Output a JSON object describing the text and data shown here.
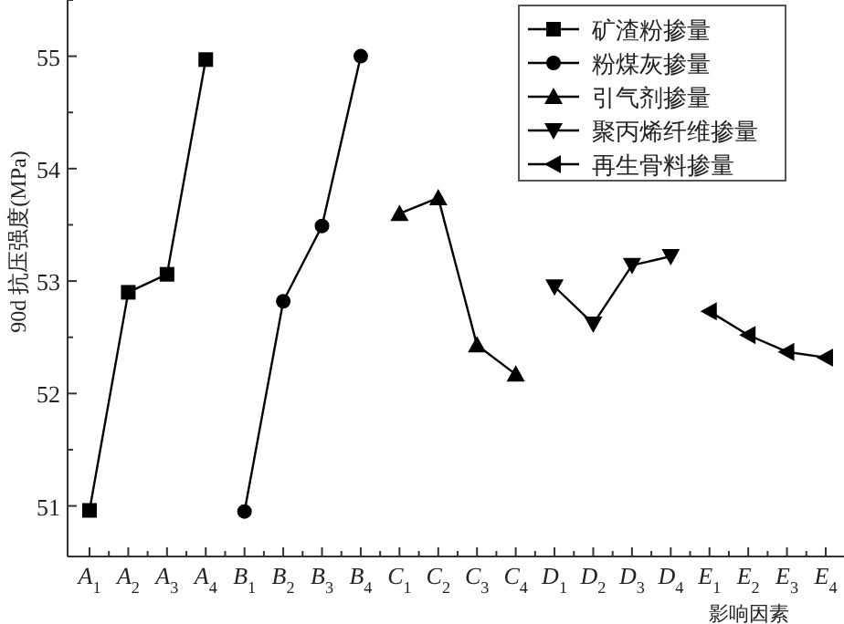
{
  "chart_data": {
    "type": "line",
    "xlabel": "影响因素",
    "ylabel": "90d 抗压强度(MPa)",
    "categories": [
      "A$_{1}$",
      "A$_{2}$",
      "A$_{3}$",
      "A$_{4}$",
      "B$_{1}$",
      "B$_{2}$",
      "B$_{3}$",
      "B$_{4}$",
      "C$_{1}$",
      "C$_{2}$",
      "C$_{3}$",
      "C$_{4}$",
      "D$_{1}$",
      "D$_{2}$",
      "D$_{3}$",
      "D$_{4}$",
      "E$_{1}$",
      "E$_{2}$",
      "E$_{3}$",
      "E$_{4}$"
    ],
    "ylim": [
      50.55,
      55.5
    ],
    "yticks": [
      51,
      {
        "value": 51.5,
        "label": null
      },
      52,
      {
        "value": 52.5,
        "label": null
      },
      53,
      {
        "value": 53.5,
        "label": null
      },
      54,
      {
        "value": 54.5,
        "label": null
      },
      55,
      {
        "value": 55.5,
        "label": null
      }
    ],
    "grid": false,
    "legend": "top right",
    "line_style": "solid",
    "series": [
      {
        "name": "矿渣粉掺量",
        "color": "#000000",
        "marker": "square",
        "values": [
          50.96,
          52.9,
          53.06,
          54.97,
          null,
          null,
          null,
          null,
          null,
          null,
          null,
          null,
          null,
          null,
          null,
          null,
          null,
          null,
          null,
          null
        ]
      },
      {
        "name": "粉煤灰掺量",
        "color": "#000000",
        "marker": "circle",
        "values": [
          null,
          null,
          null,
          null,
          50.95,
          52.82,
          53.49,
          55.0,
          null,
          null,
          null,
          null,
          null,
          null,
          null,
          null,
          null,
          null,
          null,
          null
        ]
      },
      {
        "name": "引气剂掺量",
        "color": "#000000",
        "marker": "triangle",
        "values": [
          null,
          null,
          null,
          null,
          null,
          null,
          null,
          null,
          53.6,
          53.74,
          52.43,
          52.17,
          null,
          null,
          null,
          null,
          null,
          null,
          null,
          null
        ]
      },
      {
        "name": "聚丙烯纤维掺量",
        "color": "#000000",
        "marker": "triangle-down",
        "values": [
          null,
          null,
          null,
          null,
          null,
          null,
          null,
          null,
          null,
          null,
          null,
          null,
          52.95,
          52.62,
          53.14,
          53.22,
          null,
          null,
          null,
          null
        ]
      },
      {
        "name": "再生骨料掺量",
        "color": "#000000",
        "marker": "triangle-left",
        "values": [
          null,
          null,
          null,
          null,
          null,
          null,
          null,
          null,
          null,
          null,
          null,
          null,
          null,
          null,
          null,
          null,
          52.73,
          52.52,
          52.37,
          52.32
        ]
      }
    ]
  }
}
